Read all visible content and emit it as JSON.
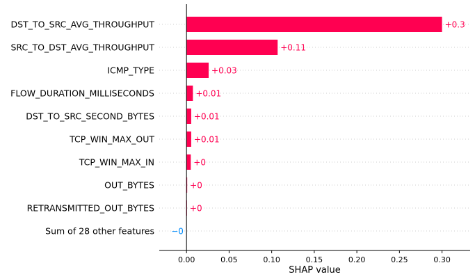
{
  "chart_data": {
    "type": "bar",
    "orientation": "horizontal",
    "xlabel": "SHAP value",
    "xlim": [
      -0.032,
      0.333
    ],
    "xticks": [
      0.0,
      0.05,
      0.1,
      0.15,
      0.2,
      0.25,
      0.3
    ],
    "xtick_labels": [
      "0.00",
      "0.05",
      "0.10",
      "0.15",
      "0.20",
      "0.25",
      "0.30"
    ],
    "grid": "horizontal dotted",
    "positive_color": "#ff0051",
    "negative_color": "#008bfb",
    "categories": [
      "DST_TO_SRC_AVG_THROUGHPUT",
      "SRC_TO_DST_AVG_THROUGHPUT",
      "ICMP_TYPE",
      "FLOW_DURATION_MILLISECONDS",
      "DST_TO_SRC_SECOND_BYTES",
      "TCP_WIN_MAX_OUT",
      "TCP_WIN_MAX_IN",
      "OUT_BYTES",
      "RETRANSMITTED_OUT_BYTES",
      "Sum of 28 other features"
    ],
    "values": [
      0.3,
      0.107,
      0.026,
      0.0075,
      0.0055,
      0.0055,
      0.005,
      0.0008,
      0.0006,
      -0.0002
    ],
    "value_labels": [
      "+0.3",
      "+0.11",
      "+0.03",
      "+0.01",
      "+0.01",
      "+0.01",
      "+0",
      "+0",
      "+0",
      "−0"
    ]
  }
}
